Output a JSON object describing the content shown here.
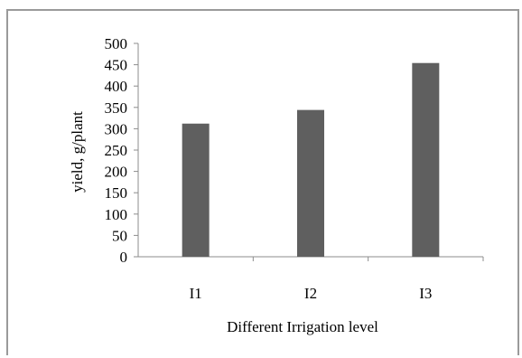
{
  "chart_data": {
    "type": "bar",
    "title": "",
    "categories": [
      "I1",
      "I2",
      "I3"
    ],
    "values": [
      312,
      344,
      454
    ],
    "xlabel": "Different Irrigation level",
    "ylabel": "yield,  g/plant",
    "ylim": [
      0,
      500
    ],
    "yticks": [
      "0",
      "50",
      "100",
      "150",
      "200",
      "250",
      "300",
      "350",
      "400",
      "450",
      "500"
    ],
    "grid": false,
    "legend": "none",
    "bar_color": "#5f5f5f",
    "axis_color": "#8c8c8c"
  }
}
